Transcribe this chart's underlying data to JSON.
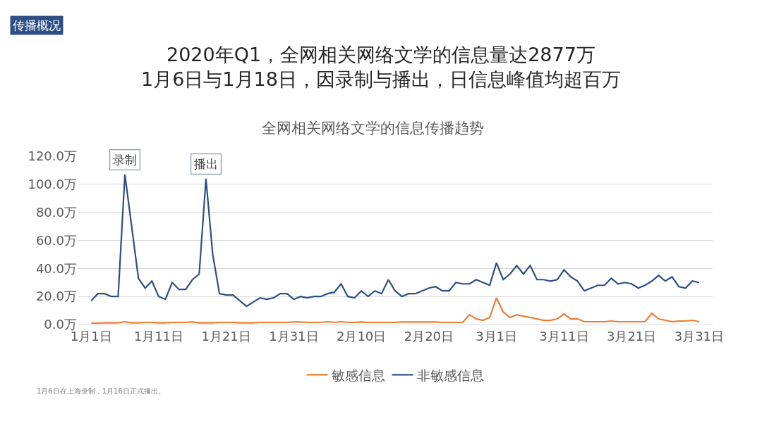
{
  "chart_data": {
    "type": "line",
    "title": "2020年Q1，全网相关网络文学的信息量达2877万\n1月6日与1月18日，因录制与播出，日信息峰值均超百万",
    "subtitle": "全网相关网络文学的信息传播趋势",
    "annotations": [
      "传播概况",
      "1月6日在上海录制，1月16日正式播出。",
      {
        "text": "录制",
        "x": "2020-01-06",
        "y": 107
      },
      {
        "text": "播出",
        "x": "2020-01-18",
        "y": 104
      }
    ],
    "x": [
      "2020-01-01",
      "2020-01-02",
      "2020-01-03",
      "2020-01-04",
      "2020-01-05",
      "2020-01-06",
      "2020-01-07",
      "2020-01-08",
      "2020-01-09",
      "2020-01-10",
      "2020-01-11",
      "2020-01-12",
      "2020-01-13",
      "2020-01-14",
      "2020-01-15",
      "2020-01-16",
      "2020-01-17",
      "2020-01-18",
      "2020-01-19",
      "2020-01-20",
      "2020-01-21",
      "2020-01-22",
      "2020-01-23",
      "2020-01-24",
      "2020-01-25",
      "2020-01-26",
      "2020-01-27",
      "2020-01-28",
      "2020-01-29",
      "2020-01-30",
      "2020-01-31",
      "2020-02-01",
      "2020-02-02",
      "2020-02-03",
      "2020-02-04",
      "2020-02-05",
      "2020-02-06",
      "2020-02-07",
      "2020-02-08",
      "2020-02-09",
      "2020-02-10",
      "2020-02-11",
      "2020-02-12",
      "2020-02-13",
      "2020-02-14",
      "2020-02-15",
      "2020-02-16",
      "2020-02-17",
      "2020-02-18",
      "2020-02-19",
      "2020-02-20",
      "2020-02-21",
      "2020-02-22",
      "2020-02-23",
      "2020-02-24",
      "2020-02-25",
      "2020-02-26",
      "2020-02-27",
      "2020-02-28",
      "2020-02-29",
      "2020-03-01",
      "2020-03-02",
      "2020-03-03",
      "2020-03-04",
      "2020-03-05",
      "2020-03-06",
      "2020-03-07",
      "2020-03-08",
      "2020-03-09",
      "2020-03-10",
      "2020-03-11",
      "2020-03-12",
      "2020-03-13",
      "2020-03-14",
      "2020-03-15",
      "2020-03-16",
      "2020-03-17",
      "2020-03-18",
      "2020-03-19",
      "2020-03-20",
      "2020-03-21",
      "2020-03-22",
      "2020-03-23",
      "2020-03-24",
      "2020-03-25",
      "2020-03-26",
      "2020-03-27",
      "2020-03-28",
      "2020-03-29",
      "2020-03-30",
      "2020-03-31"
    ],
    "series": [
      {
        "name": "敏感信息",
        "color": "#ed7d31",
        "values": [
          1,
          1,
          1.2,
          1.2,
          1.2,
          2,
          1.2,
          1.2,
          1.5,
          1.5,
          1.2,
          1.2,
          1.5,
          1.5,
          1.5,
          1.8,
          1.2,
          1.2,
          1.2,
          1.5,
          1.5,
          1.5,
          1.2,
          1.2,
          1.2,
          1.5,
          1.5,
          1.5,
          1.5,
          1.5,
          1.8,
          1.8,
          1.5,
          1.5,
          1.5,
          2,
          1.5,
          2,
          1.5,
          1.5,
          1.8,
          1.5,
          1.5,
          1.5,
          1.5,
          1.5,
          1.8,
          1.8,
          1.8,
          1.8,
          1.8,
          1.8,
          1.5,
          1.5,
          1.5,
          1.5,
          7,
          4,
          3,
          5,
          19,
          9,
          5,
          7,
          6,
          5,
          4,
          3,
          3,
          4,
          7.5,
          4,
          4,
          2,
          2,
          2,
          2,
          2.5,
          2,
          2,
          2,
          2,
          2,
          8,
          4,
          3,
          2,
          2.5,
          2.5,
          3,
          2
        ]
      },
      {
        "name": "非敏感信息",
        "color": "#2e4f85",
        "values": [
          17,
          22,
          22,
          20,
          20,
          107,
          70,
          33,
          26,
          31,
          20,
          18,
          30,
          25,
          25,
          32,
          36,
          104,
          50,
          22,
          21,
          21,
          17,
          13,
          16,
          19,
          18,
          19,
          22,
          22,
          18,
          20,
          19,
          20,
          20,
          22,
          23,
          29,
          20,
          19,
          24,
          20,
          24,
          22,
          32,
          24,
          20,
          22,
          22,
          24,
          26,
          27,
          24,
          24,
          30,
          29,
          29,
          32,
          30,
          28,
          44,
          32,
          36,
          42,
          36,
          42,
          32,
          32,
          31,
          32,
          39,
          34,
          31,
          24,
          26,
          28,
          28,
          33,
          29,
          30,
          29,
          26,
          28,
          31,
          35,
          31,
          34,
          27,
          26,
          31,
          30
        ]
      }
    ],
    "xlim": [
      "2019-12-30",
      "2020-04-02"
    ],
    "xticks": [
      {
        "value": "2020-01-01",
        "label": "1月1日"
      },
      {
        "value": "2020-01-11",
        "label": "1月11日"
      },
      {
        "value": "2020-01-21",
        "label": "1月21日"
      },
      {
        "value": "2020-01-31",
        "label": "1月31日"
      },
      {
        "value": "2020-02-10",
        "label": "2月10日"
      },
      {
        "value": "2020-02-20",
        "label": "2月20日"
      },
      {
        "value": "2020-03-01",
        "label": "3月1日"
      },
      {
        "value": "2020-03-11",
        "label": "3月11日"
      },
      {
        "value": "2020-03-21",
        "label": "3月21日"
      },
      {
        "value": "2020-03-31",
        "label": "3月31日"
      }
    ],
    "ylim": [
      0,
      120
    ],
    "yticks": [
      {
        "value": 0,
        "label": "0.0万"
      },
      {
        "value": 20,
        "label": "20.0万"
      },
      {
        "value": 40,
        "label": "40.0万"
      },
      {
        "value": 60,
        "label": "60.0万"
      },
      {
        "value": 80,
        "label": "80.0万"
      },
      {
        "value": 100,
        "label": "100.0万"
      },
      {
        "value": 120,
        "label": "120.0万"
      }
    ],
    "grid": "y",
    "legend": "bottom",
    "marker": "none",
    "line_style": "solid"
  }
}
